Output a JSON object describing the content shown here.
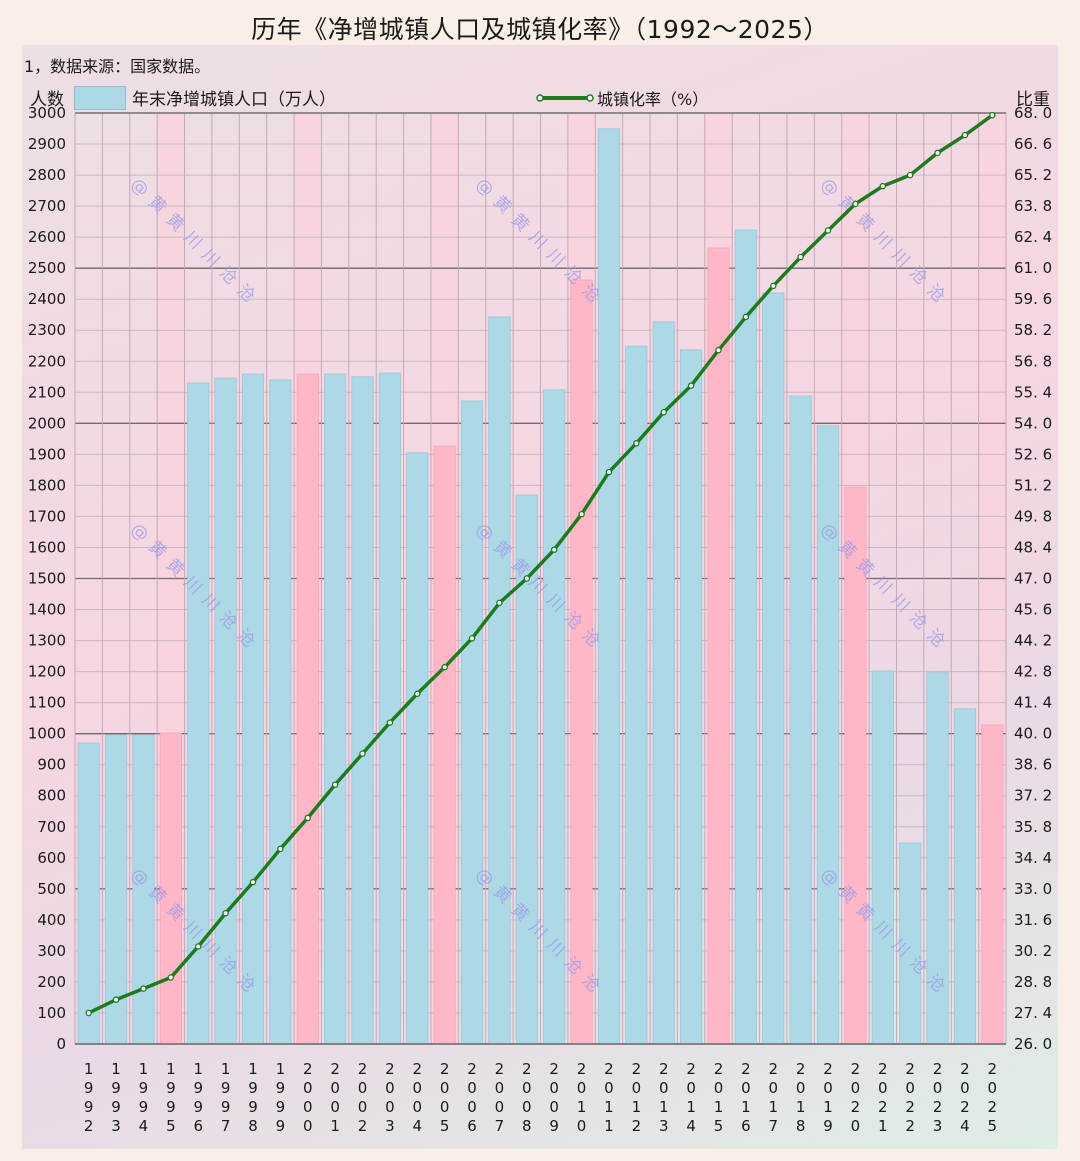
{
  "title": "历年《净增城镇人口及城镇化率》（1992～2025）",
  "note": "1，数据来源：国家数据。",
  "left_axis_title": "人数",
  "right_axis_title": "比重",
  "legend": {
    "bar_label": "年末净增城镇人口（万人）",
    "line_label": "城镇化率（%）"
  },
  "watermark": "@黄黄川川沧沧",
  "colors": {
    "bar": "#add8e6",
    "bar_highlight": "#ffb6c6",
    "line": "#1e7a1e",
    "marker_fill": "#ffffff",
    "page_bg": "#f9efe6"
  },
  "chart_data": {
    "type": "bar+line",
    "title": "历年《净增城镇人口及城镇化率》（1992～2025）",
    "xlabel": "",
    "ylabel": "人数",
    "y2label": "比重",
    "ylim": [
      0,
      3000
    ],
    "y2lim": [
      26.0,
      68.0
    ],
    "yticks": [
      0,
      100,
      200,
      300,
      400,
      500,
      600,
      700,
      800,
      900,
      1000,
      1100,
      1200,
      1300,
      1400,
      1500,
      1600,
      1700,
      1800,
      1900,
      2000,
      2100,
      2200,
      2300,
      2400,
      2500,
      2600,
      2700,
      2800,
      2900,
      3000
    ],
    "y2ticks": [
      "26.0",
      "27.4",
      "28.8",
      "30.2",
      "31.6",
      "33.0",
      "34.4",
      "35.8",
      "37.2",
      "38.6",
      "40.0",
      "41.4",
      "42.8",
      "44.2",
      "45.6",
      "47.0",
      "48.4",
      "49.8",
      "51.2",
      "52.6",
      "54.0",
      "55.4",
      "56.8",
      "58.2",
      "59.6",
      "61.0",
      "62.4",
      "63.8",
      "65.2",
      "66.6",
      "68.0"
    ],
    "grid": true,
    "legend_position": "top",
    "categories": [
      "1992",
      "1993",
      "1994",
      "1995",
      "1996",
      "1997",
      "1998",
      "1999",
      "2000",
      "2001",
      "2002",
      "2003",
      "2004",
      "2005",
      "2006",
      "2007",
      "2008",
      "2009",
      "2010",
      "2011",
      "2012",
      "2013",
      "2014",
      "2015",
      "2016",
      "2017",
      "2018",
      "2019",
      "2020",
      "2021",
      "2022",
      "2023",
      "2024",
      "2025"
    ],
    "highlight_categories": [
      "1995",
      "2000",
      "2005",
      "2010",
      "2015",
      "2020",
      "2025"
    ],
    "series": [
      {
        "name": "年末净增城镇人口（万人）",
        "type": "bar",
        "axis": "left",
        "values": [
          970,
          996,
          996,
          1002,
          2130,
          2146,
          2159,
          2140,
          2159,
          2159,
          2150,
          2162,
          1905,
          1927,
          2072,
          2343,
          1769,
          2108,
          2462,
          2949,
          2249,
          2327,
          2237,
          2565,
          2623,
          2420,
          2088,
          1992,
          1795,
          1202,
          648,
          1196,
          1080,
          1028
        ]
      },
      {
        "name": "城镇化率（%）",
        "type": "line",
        "axis": "right",
        "values": [
          27.4,
          28.0,
          28.5,
          29.0,
          30.4,
          31.9,
          33.3,
          34.8,
          36.2,
          37.7,
          39.1,
          40.5,
          41.8,
          43.0,
          44.3,
          45.9,
          47.0,
          48.3,
          49.9,
          51.8,
          53.1,
          54.5,
          55.7,
          57.3,
          58.8,
          60.2,
          61.5,
          62.7,
          63.9,
          64.7,
          65.2,
          66.2,
          67.0,
          67.9
        ]
      }
    ]
  }
}
